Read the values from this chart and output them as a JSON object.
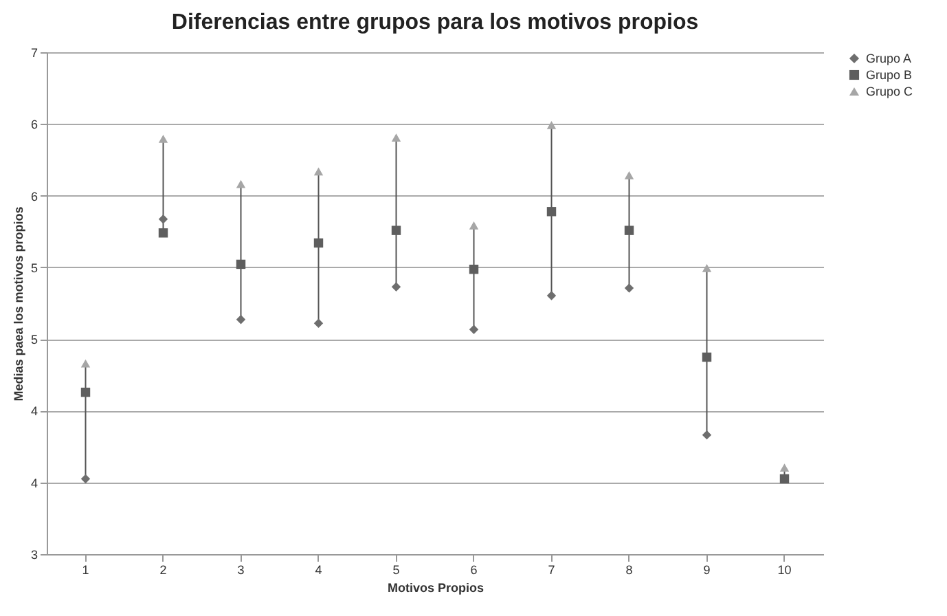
{
  "chart_data": {
    "type": "scatter",
    "title": "Diferencias entre grupos para los motivos propios",
    "xlabel": "Motivos Propios",
    "ylabel": "Medias paea los motivos propios",
    "categories": [
      "1",
      "2",
      "3",
      "4",
      "5",
      "6",
      "7",
      "8",
      "9",
      "10"
    ],
    "series": [
      {
        "name": "Grupo A",
        "color": "#6e6e6e",
        "marker": "diamond",
        "values": [
          3.6,
          5.67,
          4.87,
          4.84,
          5.13,
          4.79,
          5.06,
          5.12,
          3.95,
          null
        ]
      },
      {
        "name": "Grupo B",
        "color": "#5e5e5e",
        "marker": "square",
        "values": [
          4.29,
          5.56,
          5.31,
          5.48,
          5.58,
          5.27,
          5.73,
          5.58,
          4.57,
          3.6
        ]
      },
      {
        "name": "Grupo C",
        "color": "#a6a6a6",
        "marker": "triangle",
        "values": [
          4.52,
          6.31,
          5.95,
          6.05,
          6.32,
          5.62,
          6.42,
          6.02,
          5.28,
          3.69
        ]
      }
    ],
    "ylim": [
      3,
      7
    ],
    "yticks": [
      3,
      {
        "value": 3.571,
        "label": "4"
      },
      {
        "value": 4.143,
        "label": "4"
      },
      {
        "value": 4.714,
        "label": "5"
      },
      {
        "value": 5.286,
        "label": "5"
      },
      {
        "value": 5.857,
        "label": "6"
      },
      {
        "value": 6.429,
        "label": "6"
      },
      7
    ],
    "grid": "y",
    "legend": "right"
  }
}
